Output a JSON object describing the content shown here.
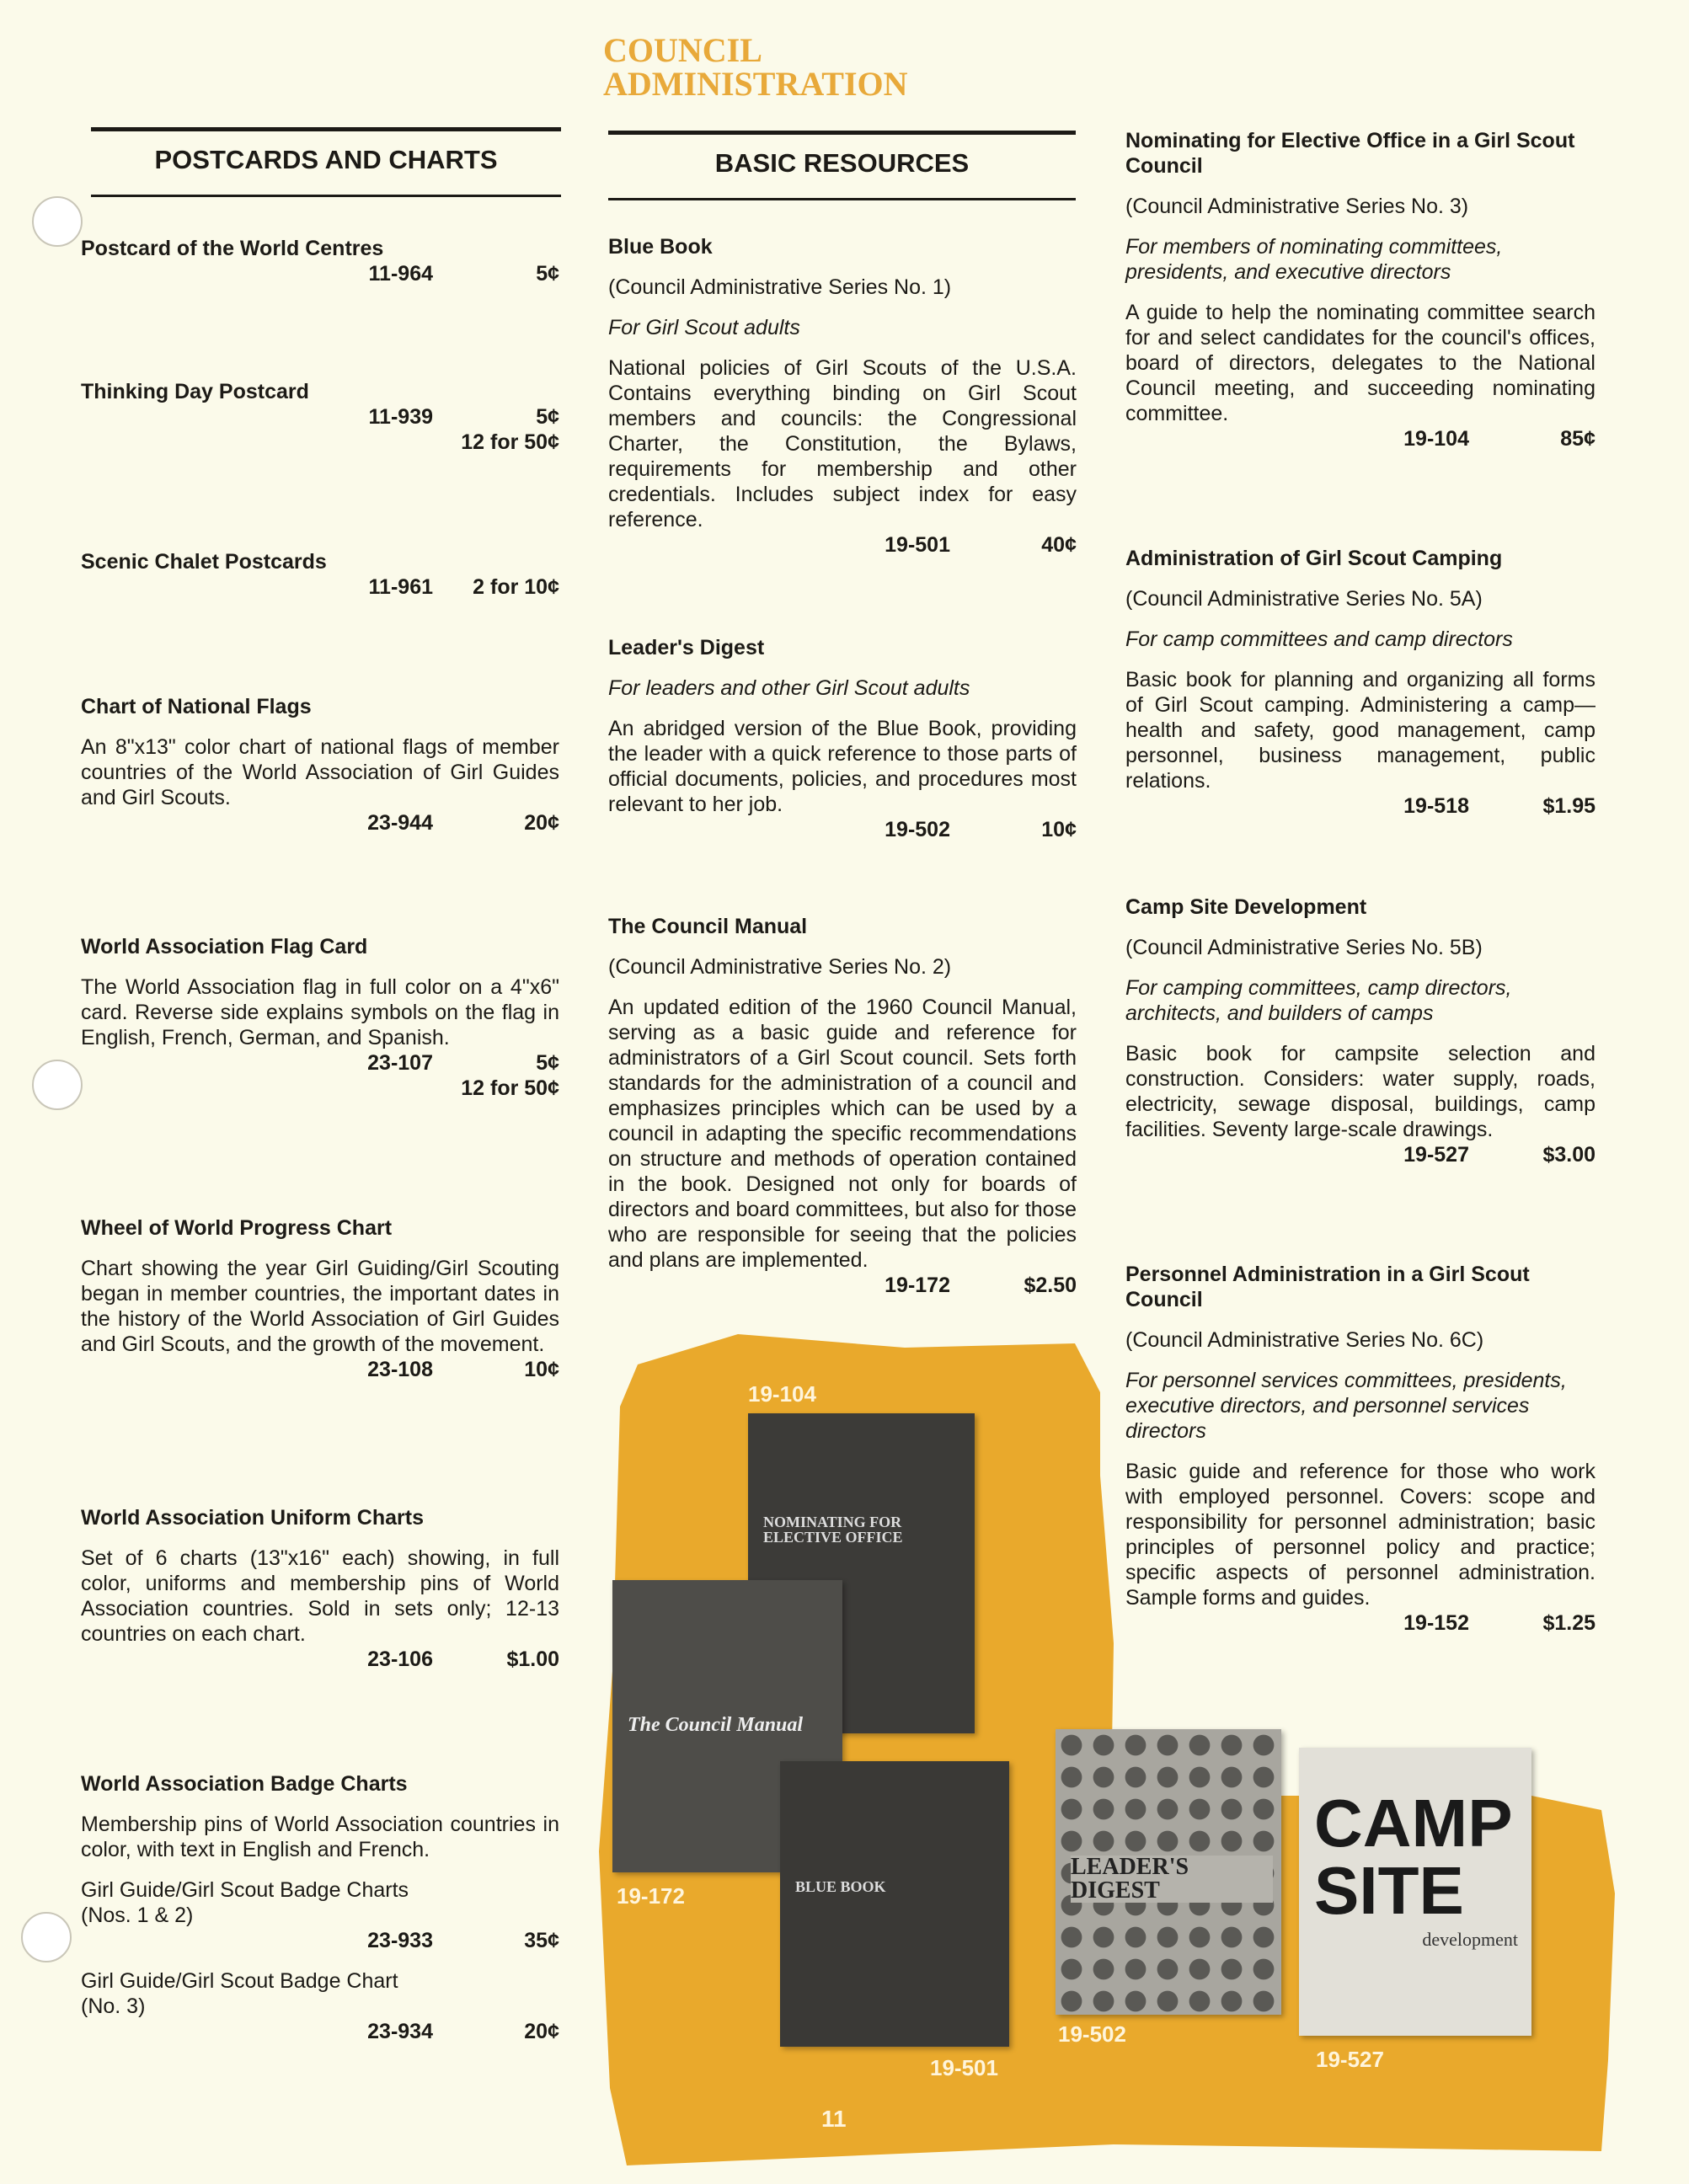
{
  "header": {
    "line1": "COUNCIL",
    "line2": "ADMINISTRATION",
    "color": "#e8a93a"
  },
  "sections": {
    "left": "POSTCARDS AND CHARTS",
    "middle": "BASIC RESOURCES"
  },
  "left": [
    {
      "title": "Postcard of the World Centres",
      "prices": [
        {
          "code": "11-964",
          "price": "5¢"
        }
      ]
    },
    {
      "title": "Thinking Day Postcard",
      "prices": [
        {
          "code": "11-939",
          "price": "5¢"
        },
        {
          "code": "",
          "price": "12 for 50¢"
        }
      ]
    },
    {
      "title": "Scenic Chalet Postcards",
      "prices": [
        {
          "code": "11-961",
          "price": "2 for 10¢"
        }
      ]
    },
    {
      "title": "Chart of National Flags",
      "description": "An 8\"x13\" color chart of national flags of member countries of the World Association of Girl Guides and Girl Scouts.",
      "prices": [
        {
          "code": "23-944",
          "price": "20¢"
        }
      ]
    },
    {
      "title": "World Association Flag Card",
      "description": "The World Association flag in full color on a 4\"x6\" card. Reverse side explains symbols on the flag in English, French, German, and Spanish.",
      "prices": [
        {
          "code": "23-107",
          "price": "5¢"
        },
        {
          "code": "",
          "price": "12 for 50¢"
        }
      ]
    },
    {
      "title": "Wheel of World Progress Chart",
      "description": "Chart showing the year Girl Guiding/Girl Scouting began in member countries, the important dates in the history of the World Association of Girl Guides and Girl Scouts, and the growth of the movement.",
      "prices": [
        {
          "code": "23-108",
          "price": "10¢"
        }
      ]
    },
    {
      "title": "World Association Uniform Charts",
      "description": "Set of 6 charts (13\"x16\" each) showing, in full color, uniforms and membership pins of World Association countries. Sold in sets only; 12-13 countries on each chart.",
      "prices": [
        {
          "code": "23-106",
          "price": "$1.00"
        }
      ]
    },
    {
      "title": "World Association Badge Charts",
      "description": "Membership pins of World Association countries in color, with text in English and French.",
      "subitems": [
        {
          "label": "Girl Guide/Girl Scout Badge Charts (Nos. 1 & 2)",
          "code": "23-933",
          "price": "35¢"
        },
        {
          "label": "Girl Guide/Girl Scout Badge Chart (No. 3)",
          "code": "23-934",
          "price": "20¢"
        }
      ]
    }
  ],
  "middle": [
    {
      "title": "Blue Book",
      "series": "(Council Administrative Series No. 1)",
      "audience": "For Girl Scout adults",
      "description": "National policies of Girl Scouts of the U.S.A. Contains everything binding on Girl Scout members and councils: the Congressional Charter, the Constitution, the Bylaws, requirements for membership and other credentials. Includes subject index for easy reference.",
      "prices": [
        {
          "code": "19-501",
          "price": "40¢"
        }
      ]
    },
    {
      "title": "Leader's Digest",
      "audience": "For leaders and other Girl Scout adults",
      "description": "An abridged version of the Blue Book, providing the leader with a quick reference to those parts of official documents, policies, and procedures most relevant to her job.",
      "prices": [
        {
          "code": "19-502",
          "price": "10¢"
        }
      ]
    },
    {
      "title": "The Council Manual",
      "series": "(Council Administrative Series No. 2)",
      "description": "An updated edition of the 1960 Council Manual, serving as a basic guide and reference for administrators of a Girl Scout council. Sets forth standards for the administration of a council and emphasizes principles which can be used by a council in adapting the specific recommendations on structure and methods of operation contained in the book. Designed not only for boards of directors and board committees, but also for those who are responsible for seeing that the policies and plans are implemented.",
      "prices": [
        {
          "code": "19-172",
          "price": "$2.50"
        }
      ]
    }
  ],
  "right": [
    {
      "title": "Nominating for Elective Office in a Girl Scout Council",
      "series": "(Council Administrative Series No. 3)",
      "audience": "For members of nominating committees, presidents, and executive directors",
      "description": "A guide to help the nominating committee search for and select candidates for the council's offices, board of directors, delegates to the National Council meeting, and succeeding nominating committee.",
      "prices": [
        {
          "code": "19-104",
          "price": "85¢"
        }
      ]
    },
    {
      "title": "Administration of Girl Scout Camping",
      "series": "(Council Administrative Series No. 5A)",
      "audience": "For camp committees and camp directors",
      "description": "Basic book for planning and organizing all forms of Girl Scout camping. Administering a camp—health and safety, good management, camp personnel, business management, public relations.",
      "prices": [
        {
          "code": "19-518",
          "price": "$1.95"
        }
      ]
    },
    {
      "title": "Camp Site Development",
      "series": "(Council Administrative Series No. 5B)",
      "audience": "For camping committees, camp directors, architects, and builders of camps",
      "description": "Basic book for campsite selection and construction. Considers: water supply, roads, electricity, sewage disposal, buildings, camp facilities. Seventy large-scale drawings.",
      "prices": [
        {
          "code": "19-527",
          "price": "$3.00"
        }
      ]
    },
    {
      "title": "Personnel Administration in a Girl Scout Council",
      "series": "(Council Administrative Series No. 6C)",
      "audience": "For personnel services committees, presidents, executive directors, and personnel services directors",
      "description": "Basic guide and reference for those who work with employed personnel. Covers: scope and responsibility for personnel administration; basic principles of personnel policy and practice; specific aspects of personnel administration. Sample forms and guides.",
      "prices": [
        {
          "code": "19-152",
          "price": "$1.25"
        }
      ]
    }
  ],
  "photos": {
    "accent": "#e9a92c",
    "books": [
      {
        "label": "19-104",
        "cover": "NOMINATING FOR ELECTIVE OFFICE"
      },
      {
        "label": "19-172",
        "cover": "The Council Manual"
      },
      {
        "label": "19-501",
        "cover": "BLUE BOOK"
      },
      {
        "label": "19-502",
        "cover": "LEADER'S DIGEST"
      },
      {
        "label": "19-527",
        "cover": "CAMP SITE",
        "cover_sub": "development"
      }
    ]
  },
  "page_number": "11"
}
